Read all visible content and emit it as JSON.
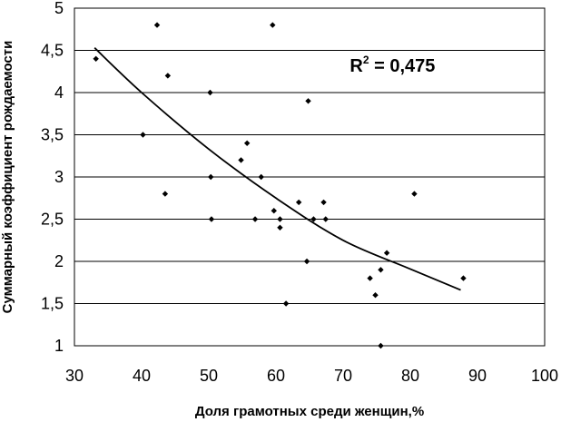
{
  "chart_data": {
    "type": "scatter",
    "xlabel": "Доля грамотных среди женщин,%",
    "ylabel": "Суммарный коэффициент рождаемости",
    "xlim": [
      30,
      100
    ],
    "ylim": [
      1,
      5
    ],
    "x_ticks": [
      "30",
      "40",
      "50",
      "60",
      "70",
      "80",
      "90",
      "100"
    ],
    "y_ticks": [
      "1",
      "1,5",
      "2",
      "2,5",
      "3",
      "3,5",
      "4",
      "4,5",
      "5"
    ],
    "grid": "horizontal",
    "annotation": {
      "base": "R",
      "sup": "2",
      "rest": " = 0,475",
      "x": 71,
      "y": 4.25
    },
    "points": [
      {
        "x": 33.2,
        "y": 4.4
      },
      {
        "x": 42.3,
        "y": 4.8
      },
      {
        "x": 59.5,
        "y": 4.8
      },
      {
        "x": 43.9,
        "y": 4.2
      },
      {
        "x": 50.2,
        "y": 4.0
      },
      {
        "x": 64.8,
        "y": 3.9
      },
      {
        "x": 40.2,
        "y": 3.5
      },
      {
        "x": 55.7,
        "y": 3.4
      },
      {
        "x": 54.8,
        "y": 3.2
      },
      {
        "x": 50.3,
        "y": 3.0
      },
      {
        "x": 57.8,
        "y": 3.0
      },
      {
        "x": 43.5,
        "y": 2.8
      },
      {
        "x": 80.6,
        "y": 2.8
      },
      {
        "x": 63.4,
        "y": 2.7
      },
      {
        "x": 67.1,
        "y": 2.7
      },
      {
        "x": 59.7,
        "y": 2.6
      },
      {
        "x": 50.4,
        "y": 2.5
      },
      {
        "x": 56.9,
        "y": 2.5
      },
      {
        "x": 60.6,
        "y": 2.5
      },
      {
        "x": 65.6,
        "y": 2.5
      },
      {
        "x": 67.4,
        "y": 2.5
      },
      {
        "x": 60.6,
        "y": 2.4
      },
      {
        "x": 76.5,
        "y": 2.1
      },
      {
        "x": 64.6,
        "y": 2.0
      },
      {
        "x": 75.6,
        "y": 1.9
      },
      {
        "x": 74.0,
        "y": 1.8
      },
      {
        "x": 87.9,
        "y": 1.8
      },
      {
        "x": 74.8,
        "y": 1.6
      },
      {
        "x": 61.5,
        "y": 1.5
      },
      {
        "x": 75.6,
        "y": 1.0
      }
    ],
    "trendline": [
      {
        "x": 33.0,
        "y": 4.53
      },
      {
        "x": 40.0,
        "y": 4.0
      },
      {
        "x": 50.0,
        "y": 3.33
      },
      {
        "x": 60.0,
        "y": 2.75
      },
      {
        "x": 70.0,
        "y": 2.25
      },
      {
        "x": 80.0,
        "y": 1.91
      },
      {
        "x": 87.5,
        "y": 1.66
      }
    ]
  }
}
